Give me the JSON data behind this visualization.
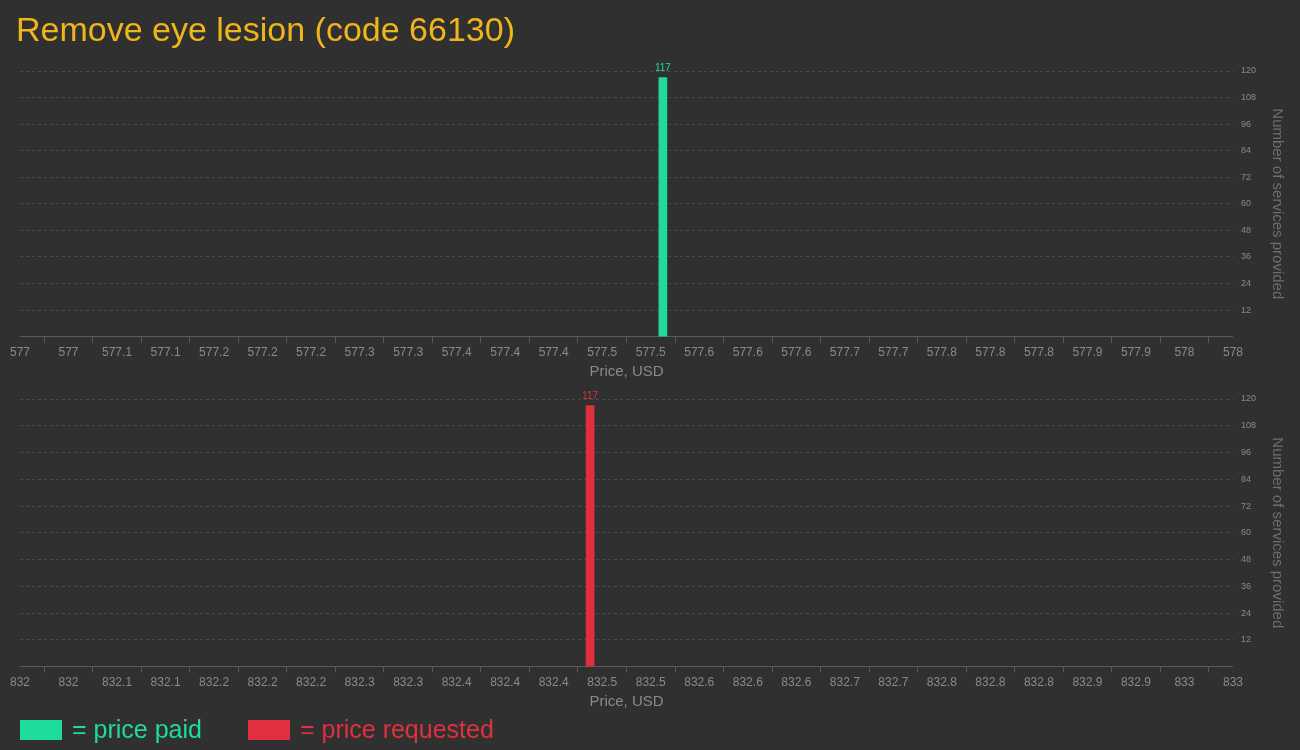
{
  "chart_data": [
    {
      "type": "bar",
      "title": "Remove eye lesion (code 66130)",
      "xlabel": "Price, USD",
      "ylabel": "Number of services provided",
      "xlim": [
        577,
        578
      ],
      "xticks": [
        {
          "value": 577,
          "label": "577"
        },
        {
          "value": 577.04,
          "label": "577"
        },
        {
          "value": 577.08,
          "label": "577.1"
        },
        {
          "value": 577.12,
          "label": "577.1"
        },
        {
          "value": 577.16,
          "label": "577.2"
        },
        {
          "value": 577.2,
          "label": "577.2"
        },
        {
          "value": 577.24,
          "label": "577.2"
        },
        {
          "value": 577.28,
          "label": "577.3"
        },
        {
          "value": 577.32,
          "label": "577.3"
        },
        {
          "value": 577.36,
          "label": "577.4"
        },
        {
          "value": 577.4,
          "label": "577.4"
        },
        {
          "value": 577.44,
          "label": "577.4"
        },
        {
          "value": 577.48,
          "label": "577.5"
        },
        {
          "value": 577.52,
          "label": "577.5"
        },
        {
          "value": 577.56,
          "label": "577.6"
        },
        {
          "value": 577.6,
          "label": "577.6"
        },
        {
          "value": 577.64,
          "label": "577.6"
        },
        {
          "value": 577.68,
          "label": "577.7"
        },
        {
          "value": 577.72,
          "label": "577.7"
        },
        {
          "value": 577.76,
          "label": "577.8"
        },
        {
          "value": 577.8,
          "label": "577.8"
        },
        {
          "value": 577.84,
          "label": "577.8"
        },
        {
          "value": 577.88,
          "label": "577.9"
        },
        {
          "value": 577.92,
          "label": "577.9"
        },
        {
          "value": 577.96,
          "label": "578"
        },
        {
          "value": 578,
          "label": "578"
        }
      ],
      "ylim": [
        0,
        120
      ],
      "yticks": [
        12,
        24,
        36,
        48,
        60,
        72,
        84,
        96,
        108,
        120
      ],
      "grid": "y",
      "data_labels": true,
      "legend": "bottom left",
      "series": [
        {
          "name": "= price paid",
          "color": "#1fdc9a",
          "x": [
            577.53
          ],
          "values": [
            117
          ]
        }
      ]
    },
    {
      "type": "bar",
      "xlabel": "Price, USD",
      "ylabel": "Number of services provided",
      "xlim": [
        832,
        833
      ],
      "xticks": [
        {
          "value": 832,
          "label": "832"
        },
        {
          "value": 832.04,
          "label": "832"
        },
        {
          "value": 832.08,
          "label": "832.1"
        },
        {
          "value": 832.12,
          "label": "832.1"
        },
        {
          "value": 832.16,
          "label": "832.2"
        },
        {
          "value": 832.2,
          "label": "832.2"
        },
        {
          "value": 832.24,
          "label": "832.2"
        },
        {
          "value": 832.28,
          "label": "832.3"
        },
        {
          "value": 832.32,
          "label": "832.3"
        },
        {
          "value": 832.36,
          "label": "832.4"
        },
        {
          "value": 832.4,
          "label": "832.4"
        },
        {
          "value": 832.44,
          "label": "832.4"
        },
        {
          "value": 832.48,
          "label": "832.5"
        },
        {
          "value": 832.52,
          "label": "832.5"
        },
        {
          "value": 832.56,
          "label": "832.6"
        },
        {
          "value": 832.6,
          "label": "832.6"
        },
        {
          "value": 832.64,
          "label": "832.6"
        },
        {
          "value": 832.68,
          "label": "832.7"
        },
        {
          "value": 832.72,
          "label": "832.7"
        },
        {
          "value": 832.76,
          "label": "832.8"
        },
        {
          "value": 832.8,
          "label": "832.8"
        },
        {
          "value": 832.84,
          "label": "832.8"
        },
        {
          "value": 832.88,
          "label": "832.9"
        },
        {
          "value": 832.92,
          "label": "832.9"
        },
        {
          "value": 832.96,
          "label": "833"
        },
        {
          "value": 833,
          "label": "833"
        }
      ],
      "ylim": [
        0,
        120
      ],
      "yticks": [
        12,
        24,
        36,
        48,
        60,
        72,
        84,
        96,
        108,
        120
      ],
      "grid": "y",
      "data_labels": true,
      "legend": "bottom left",
      "series": [
        {
          "name": "= price requested",
          "color": "#e0303f",
          "x": [
            832.47
          ],
          "values": [
            117
          ]
        }
      ]
    }
  ]
}
